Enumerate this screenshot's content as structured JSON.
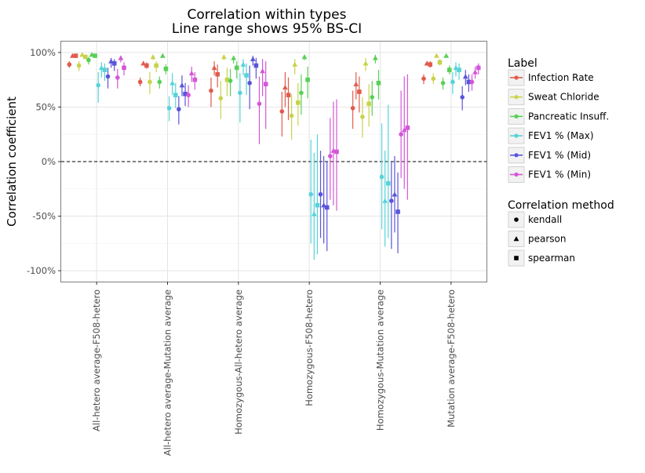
{
  "chart_data": {
    "type": "scatter",
    "title": "Correlation within types",
    "subtitle": "Line range shows 95% BS-CI",
    "xlabel": "",
    "ylabel": "Correlation coefficient",
    "ylim": [
      -110,
      110
    ],
    "y_ticks": [
      100,
      50,
      0,
      -50,
      -100
    ],
    "y_tick_labels": [
      "100%",
      "50%",
      "0%",
      "-50%",
      "-100%"
    ],
    "reference_line": 0,
    "grid": true,
    "categories": [
      "All-hetero average-F508-hetero",
      "All-hetero average-Mutation average",
      "Homozygous-All-hetero average",
      "Homozygous-F508-hetero",
      "Homozygous-Mutation average",
      "Mutation average-F508-hetero"
    ],
    "methods": [
      "kendall",
      "pearson",
      "spearman"
    ],
    "legend": {
      "label_title": "Label",
      "method_title": "Correlation method",
      "position": "right"
    },
    "series": [
      {
        "name": "Infection Rate",
        "color": "#E05C4E",
        "values": [
          [
            [
              89,
              86,
              92
            ],
            [
              97,
              96,
              98
            ],
            [
              97,
              96,
              98
            ]
          ],
          [
            [
              73,
              69,
              77
            ],
            [
              90,
              88,
              92
            ],
            [
              88,
              85,
              91
            ]
          ],
          [
            [
              65,
              50,
              77
            ],
            [
              86,
              79,
              92
            ],
            [
              80,
              68,
              89
            ]
          ],
          [
            [
              46,
              23,
              64
            ],
            [
              68,
              50,
              82
            ],
            [
              61,
              38,
              77
            ]
          ],
          [
            [
              49,
              30,
              65
            ],
            [
              71,
              57,
              82
            ],
            [
              64,
              45,
              78
            ]
          ],
          [
            [
              76,
              71,
              80
            ],
            [
              90,
              88,
              92
            ],
            [
              89,
              86,
              92
            ]
          ]
        ]
      },
      {
        "name": "Sweat Chloride",
        "color": "#C8D34B",
        "values": [
          [
            [
              88,
              83,
              92
            ],
            [
              98,
              96,
              99
            ],
            [
              96,
              94,
              98
            ]
          ],
          [
            [
              73,
              62,
              82
            ],
            [
              96,
              93,
              98
            ],
            [
              88,
              82,
              92
            ]
          ],
          [
            [
              58,
              39,
              74
            ],
            [
              96,
              93,
              98
            ],
            [
              75,
              60,
              86
            ]
          ],
          [
            [
              42,
              20,
              62
            ],
            [
              89,
              80,
              94
            ],
            [
              54,
              33,
              72
            ]
          ],
          [
            [
              41,
              22,
              59
            ],
            [
              90,
              83,
              95
            ],
            [
              53,
              32,
              71
            ]
          ],
          [
            [
              76,
              71,
              81
            ],
            [
              97,
              96,
              98
            ],
            [
              91,
              88,
              94
            ]
          ]
        ]
      },
      {
        "name": "Pancreatic Insuff.",
        "color": "#58D058",
        "values": [
          [
            [
              93,
              89,
              96
            ],
            [
              98,
              97,
              99
            ],
            [
              97,
              96,
              98
            ]
          ],
          [
            [
              73,
              67,
              78
            ],
            [
              97,
              96,
              98
            ],
            [
              85,
              80,
              89
            ]
          ],
          [
            [
              74,
              60,
              85
            ],
            [
              95,
              90,
              97
            ],
            [
              86,
              76,
              92
            ]
          ],
          [
            [
              63,
              43,
              80
            ],
            [
              96,
              93,
              98
            ],
            [
              75,
              58,
              87
            ]
          ],
          [
            [
              59,
              42,
              74
            ],
            [
              95,
              90,
              98
            ],
            [
              72,
              57,
              84
            ]
          ],
          [
            [
              72,
              66,
              77
            ],
            [
              97,
              96,
              98
            ],
            [
              84,
              80,
              88
            ]
          ]
        ]
      },
      {
        "name": "FEV1 % (Max)",
        "color": "#56D3D8",
        "values": [
          [
            [
              70,
              54,
              82
            ],
            [
              86,
              77,
              91
            ],
            [
              84,
              74,
              90
            ]
          ],
          [
            [
              49,
              37,
              60
            ],
            [
              72,
              61,
              81
            ],
            [
              61,
              49,
              72
            ]
          ],
          [
            [
              63,
              36,
              81
            ],
            [
              89,
              79,
              94
            ],
            [
              79,
              61,
              90
            ]
          ],
          [
            [
              -30,
              -75,
              20
            ],
            [
              -48,
              -90,
              8
            ],
            [
              -40,
              -85,
              25
            ]
          ],
          [
            [
              -14,
              -62,
              35
            ],
            [
              -36,
              -78,
              10
            ],
            [
              -20,
              -70,
              52
            ]
          ],
          [
            [
              73,
              62,
              82
            ],
            [
              86,
              78,
              91
            ],
            [
              84,
              75,
              90
            ]
          ]
        ]
      },
      {
        "name": "FEV1 % (Mid)",
        "color": "#5A55D8",
        "values": [
          [
            [
              78,
              67,
              86
            ],
            [
              92,
              86,
              95
            ],
            [
              90,
              83,
              94
            ]
          ],
          [
            [
              48,
              34,
              60
            ],
            [
              70,
              60,
              79
            ],
            [
              62,
              51,
              72
            ]
          ],
          [
            [
              72,
              48,
              88
            ],
            [
              94,
              88,
              97
            ],
            [
              88,
              76,
              95
            ]
          ],
          [
            [
              -30,
              -70,
              10
            ],
            [
              -40,
              -75,
              5
            ],
            [
              -42,
              -82,
              0
            ]
          ],
          [
            [
              -36,
              -80,
              0
            ],
            [
              -30,
              -65,
              5
            ],
            [
              -46,
              -84,
              -10
            ]
          ],
          [
            [
              59,
              47,
              69
            ],
            [
              78,
              70,
              84
            ],
            [
              73,
              64,
              80
            ]
          ]
        ]
      },
      {
        "name": "FEV1 % (Min)",
        "color": "#D456D8",
        "values": [
          [
            [
              77,
              67,
              85
            ],
            [
              95,
              91,
              97
            ],
            [
              86,
              79,
              91
            ]
          ],
          [
            [
              61,
              50,
              70
            ],
            [
              81,
              73,
              87
            ],
            [
              75,
              66,
              82
            ]
          ],
          [
            [
              53,
              16,
              78
            ],
            [
              83,
              60,
              94
            ],
            [
              71,
              30,
              92
            ]
          ],
          [
            [
              5,
              -35,
              40
            ],
            [
              10,
              -40,
              55
            ],
            [
              9,
              -45,
              57
            ]
          ],
          [
            [
              25,
              -15,
              65
            ],
            [
              29,
              -25,
              78
            ],
            [
              31,
              -35,
              80
            ]
          ],
          [
            [
              73,
              65,
              80
            ],
            [
              82,
              76,
              87
            ],
            [
              86,
              80,
              90
            ]
          ]
        ]
      }
    ]
  }
}
